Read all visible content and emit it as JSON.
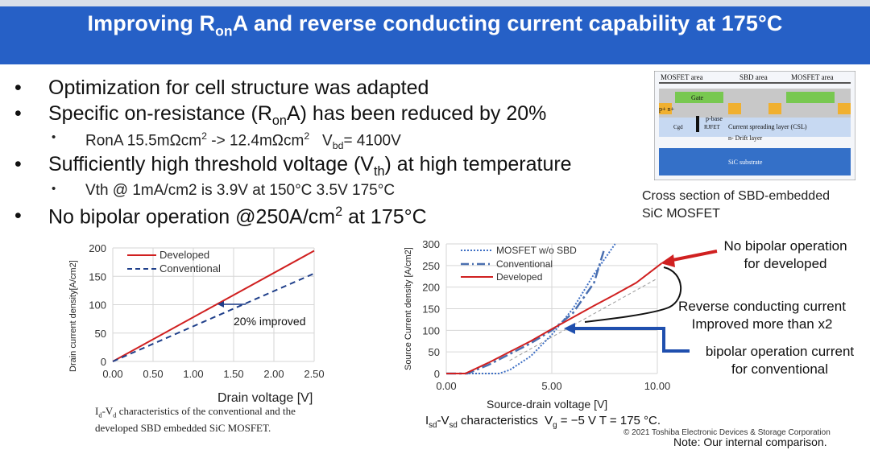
{
  "title": {
    "pre": "Improving R",
    "sub": "on",
    "post": "A and reverse conducting current capability at 175°C"
  },
  "bullets": [
    {
      "text": "Optimization for cell structure was adapted"
    },
    {
      "pre": "Specific on-resistance (R",
      "sub": "on",
      "post": "A) has been reduced by 20%"
    },
    {
      "pre": "Sufficiently high threshold voltage (V",
      "sub": "th",
      "post": ") at high temperature"
    },
    {
      "pre": "No bipolar operation @250A/cm",
      "sup": "2",
      "post": " at 175°C"
    }
  ],
  "subbullets": [
    {
      "a": "RonA 15.5mΩcm",
      "a_sup": "2",
      "b": " -> 12.4mΩcm",
      "b_sup": "2",
      "c": "   V",
      "c_sub": "bd",
      "d": "= 4100V"
    },
    {
      "text": "Vth @ 1mA/cm2 is 3.9V at 150°C 3.5V 175°C"
    }
  ],
  "bullet_char": "•",
  "cross_section": {
    "labels": {
      "mosfet_area_left": "MOSFET area",
      "sbd_area": "SBD area",
      "mosfet_area_right": "MOSFET area",
      "gate": "Gate",
      "pn": "p+ n+",
      "p_base": "p-base",
      "cgd": "Cgd",
      "rjfet": "RJFET",
      "csl": "Current spreading layer (CSL)",
      "drift": "n- Drift layer",
      "substrate": "SiC substrate"
    },
    "caption_line1": "Cross section of SBD-embedded",
    "caption_line2": "SiC MOSFET"
  },
  "chart_data": [
    {
      "type": "line",
      "xlabel": "Drain voltage [V]",
      "ylabel": "Drain current density[A/cm2]",
      "xlim": [
        0,
        2.5
      ],
      "ylim": [
        0,
        200
      ],
      "x_ticks": [
        "0.00",
        "0.50",
        "1.00",
        "1.50",
        "2.00",
        "2.50"
      ],
      "y_ticks": [
        "0",
        "50",
        "100",
        "150",
        "200"
      ],
      "grid": true,
      "legend": "top-left",
      "series": [
        {
          "name": "Developed",
          "color": "#d02020",
          "style": "solid",
          "x": [
            0,
            2.5
          ],
          "y": [
            0,
            195
          ]
        },
        {
          "name": "Conventional",
          "color": "#1f3f8a",
          "style": "dashed",
          "x": [
            0,
            2.5
          ],
          "y": [
            0,
            155
          ]
        }
      ],
      "annotation": "20% improved",
      "caption_pre": "I",
      "caption_sub1": "d",
      "caption_mid": "-V",
      "caption_sub2": "d",
      "caption_line1_post": " characteristics of the conventional and the",
      "caption_line2": "developed SBD embedded SiC MOSFET."
    },
    {
      "type": "line",
      "xlabel": "Source-drain voltage [V]",
      "ylabel": "Source  Current density [A/cm2]",
      "xlim": [
        0,
        10
      ],
      "ylim": [
        0,
        300
      ],
      "x_ticks": [
        "0.00",
        "5.00",
        "10.00"
      ],
      "y_ticks": [
        "0",
        "50",
        "100",
        "150",
        "200",
        "250",
        "300"
      ],
      "grid": true,
      "legend": "top-left",
      "series": [
        {
          "name": "MOSFET w/o SBD",
          "color": "#3e6fc4",
          "style": "dotted",
          "x": [
            0,
            2.5,
            3,
            4,
            5,
            6,
            7,
            8
          ],
          "y": [
            0,
            0,
            8,
            40,
            90,
            150,
            230,
            300
          ]
        },
        {
          "name": "Conventional",
          "color": "#4a6fb0",
          "style": "dashdot",
          "x": [
            0,
            1,
            2,
            3,
            4,
            5,
            6,
            7,
            7.5
          ],
          "y": [
            0,
            0,
            20,
            45,
            70,
            100,
            140,
            210,
            290
          ]
        },
        {
          "name": "Developed",
          "color": "#d02020",
          "style": "solid",
          "x": [
            0,
            0.9,
            2,
            3,
            4,
            5,
            6,
            7,
            8,
            9,
            10.2
          ],
          "y": [
            0,
            0,
            25,
            50,
            75,
            103,
            130,
            157,
            183,
            210,
            255
          ]
        }
      ],
      "extra_gray_dashed": {
        "x": [
          3,
          10
        ],
        "y": [
          30,
          220
        ]
      },
      "caption_pre": "I",
      "caption_sub1": "sd",
      "caption_mid": "-V",
      "caption_sub2": "sd",
      "caption_post": " characteristics  V",
      "caption_sub3": "g",
      "caption_end": " = −5 V T = 175 °C."
    }
  ],
  "annotations": {
    "no_bipolar_line1": "No bipolar operation",
    "no_bipolar_line2": "for developed",
    "reverse_line1": "Reverse conducting current",
    "reverse_line2": "Improved more than  x2",
    "bipolar_line1": "bipolar operation current",
    "bipolar_line2": "for conventional"
  },
  "footer": {
    "copyright": "© 2021 Toshiba Electronic Devices & Storage Corporation",
    "note": "Note: Our internal comparison."
  }
}
